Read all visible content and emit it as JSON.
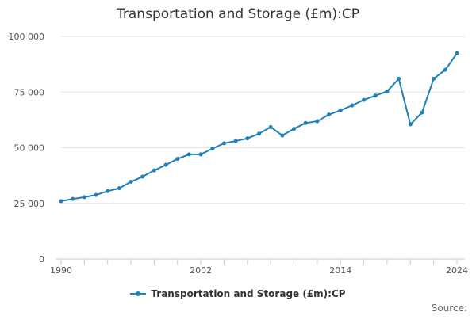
{
  "title": "Transportation and Storage (£m):CP",
  "source_label": "Source:",
  "legend": {
    "label": "Transportation and Storage (£m):CP",
    "color": "#1f7fb7"
  },
  "chart_data": {
    "type": "line",
    "title": "Transportation and Storage (£m):CP",
    "xlabel": "",
    "ylabel": "",
    "x": [
      1990,
      1991,
      1992,
      1993,
      1994,
      1995,
      1996,
      1997,
      1998,
      1999,
      2000,
      2001,
      2002,
      2003,
      2004,
      2005,
      2006,
      2007,
      2008,
      2009,
      2010,
      2011,
      2012,
      2013,
      2014,
      2015,
      2016,
      2017,
      2018,
      2019,
      2020,
      2021,
      2022,
      2023,
      2024
    ],
    "series": [
      {
        "name": "Transportation and Storage (£m):CP",
        "values": [
          26000,
          27000,
          27800,
          28800,
          30500,
          31800,
          34700,
          37000,
          39800,
          42300,
          45000,
          47000,
          47000,
          49600,
          52000,
          53000,
          54200,
          56300,
          59300,
          55500,
          58500,
          61100,
          61900,
          64900,
          66800,
          69000,
          71500,
          73400,
          75300,
          81000,
          60500,
          65800,
          81000,
          85000,
          92400
        ],
        "color": "#1f7fb7"
      }
    ],
    "xlim": [
      1990,
      2024
    ],
    "ylim": [
      0,
      100000
    ],
    "yticks": [
      0,
      25000,
      50000,
      75000,
      100000
    ],
    "ytick_labels": [
      "0",
      "25 000",
      "50 000",
      "75 000",
      "100 000"
    ],
    "xticks_minor": [
      1990,
      1992,
      1994,
      1996,
      1998,
      2000,
      2002,
      2004,
      2006,
      2008,
      2010,
      2012,
      2014,
      2016,
      2018,
      2020,
      2022,
      2024
    ],
    "xticks_labeled": [
      1990,
      2002,
      2014,
      2024
    ],
    "xtick_labels": [
      "1990",
      "2002",
      "2014",
      "2024"
    ],
    "grid": "horizontal",
    "legend_position": "bottom-center"
  }
}
